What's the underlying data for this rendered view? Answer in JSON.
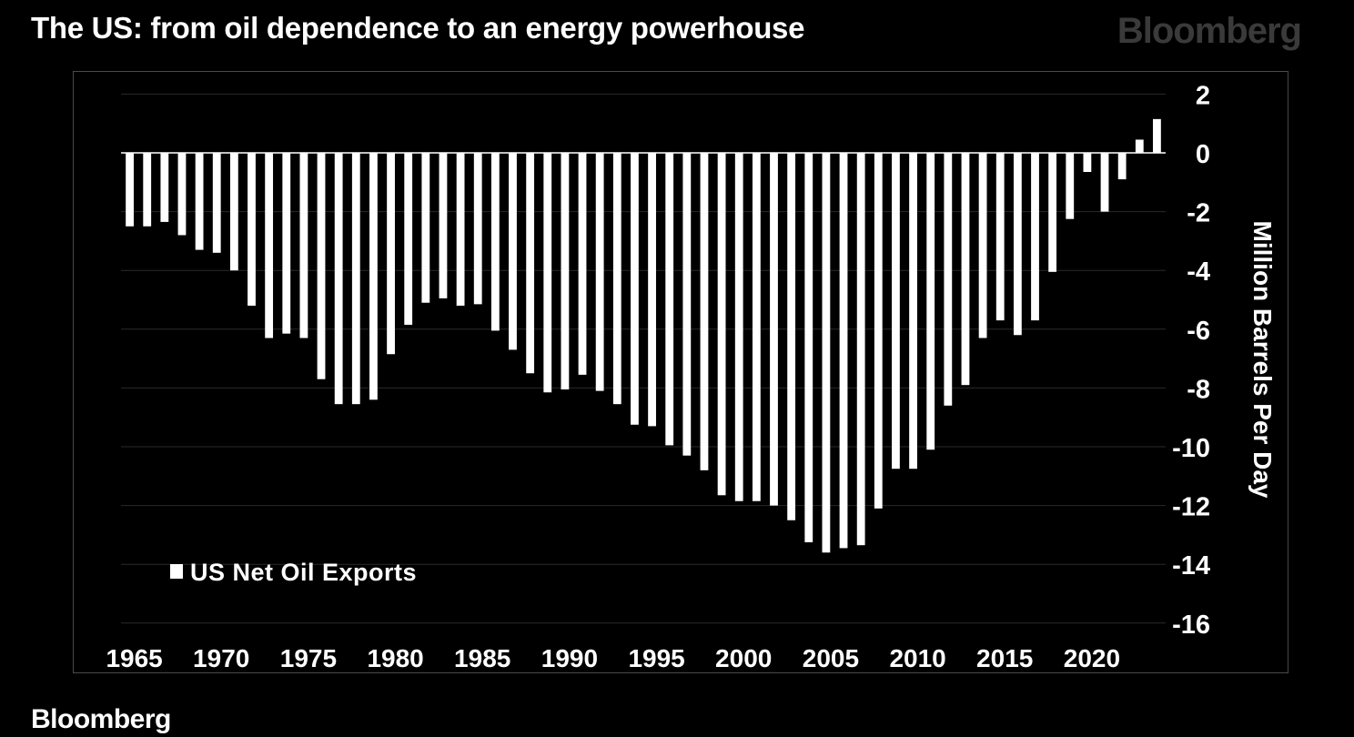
{
  "header": {
    "title": "The US: from oil dependence to an energy powerhouse",
    "brand": "Bloomberg"
  },
  "footer": {
    "brand": "Bloomberg"
  },
  "colors": {
    "background": "#000000",
    "bars": "#ffffff",
    "gridlines": "#2a2a2a",
    "brand_top": "#3a3a3a"
  },
  "chart_data": {
    "type": "bar",
    "title": "The US: from oil dependence to an energy powerhouse",
    "xlabel": "",
    "ylabel": "Million Barrels Per Day",
    "ylim": [
      -16,
      2
    ],
    "yticks": [
      2,
      0,
      -2,
      -4,
      -6,
      -8,
      -10,
      -12,
      -14,
      -16
    ],
    "xtick_labels": [
      "1965",
      "1970",
      "1975",
      "1980",
      "1985",
      "1990",
      "1995",
      "2000",
      "2005",
      "2010",
      "2015",
      "2020"
    ],
    "grid": true,
    "legend": {
      "position": "bottom-left",
      "label": "US Net Oil Exports"
    },
    "series": [
      {
        "name": "US Net Oil Exports",
        "years": [
          1965,
          1966,
          1967,
          1968,
          1969,
          1970,
          1971,
          1972,
          1973,
          1974,
          1975,
          1976,
          1977,
          1978,
          1979,
          1980,
          1981,
          1982,
          1983,
          1984,
          1985,
          1986,
          1987,
          1988,
          1989,
          1990,
          1991,
          1992,
          1993,
          1994,
          1995,
          1996,
          1997,
          1998,
          1999,
          2000,
          2001,
          2002,
          2003,
          2004,
          2005,
          2006,
          2007,
          2008,
          2009,
          2010,
          2011,
          2012,
          2013,
          2014,
          2015,
          2016,
          2017,
          2018,
          2019,
          2020,
          2021,
          2022,
          2023,
          2024
        ],
        "values": [
          -2.5,
          -2.5,
          -2.35,
          -2.8,
          -3.3,
          -3.4,
          -4.0,
          -5.2,
          -6.3,
          -6.15,
          -6.3,
          -7.7,
          -8.55,
          -8.55,
          -8.4,
          -6.85,
          -5.85,
          -5.1,
          -4.95,
          -5.2,
          -5.15,
          -6.05,
          -6.7,
          -7.5,
          -8.15,
          -8.05,
          -7.55,
          -8.1,
          -8.55,
          -9.25,
          -9.3,
          -9.95,
          -10.3,
          -10.8,
          -11.65,
          -11.85,
          -11.85,
          -12.0,
          -12.5,
          -13.25,
          -13.6,
          -13.45,
          -13.35,
          -12.1,
          -10.75,
          -10.75,
          -10.1,
          -8.6,
          -7.9,
          -6.3,
          -5.7,
          -6.2,
          -5.7,
          -4.05,
          -2.25,
          -0.65,
          -2.0,
          -0.9,
          0.45,
          1.15
        ]
      }
    ]
  }
}
